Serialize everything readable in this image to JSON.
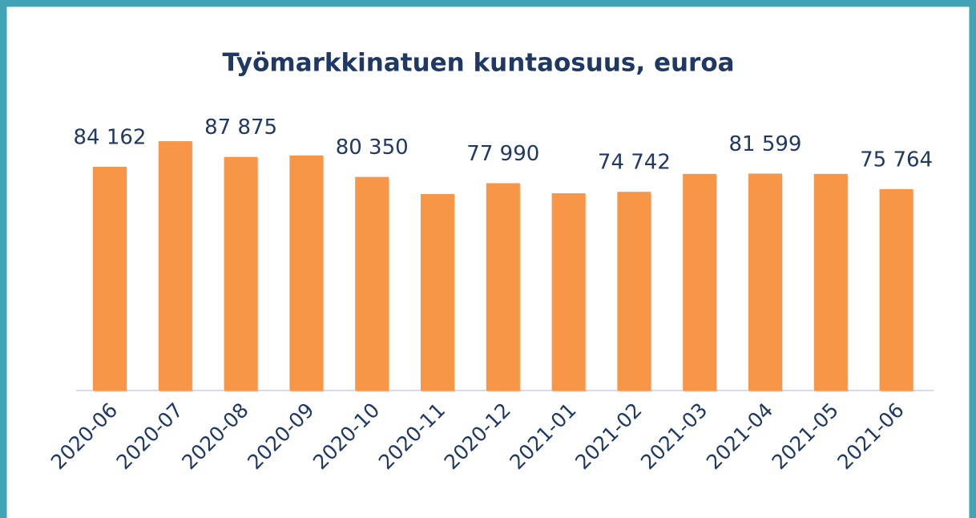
{
  "chart_data": {
    "type": "bar",
    "title": "Työmarkkinatuen kuntaosuus, euroa",
    "categories": [
      "2020-06",
      "2020-07",
      "2020-08",
      "2020-09",
      "2020-10",
      "2020-11",
      "2020-12",
      "2021-01",
      "2021-02",
      "2021-03",
      "2021-04",
      "2021-05",
      "2021-06"
    ],
    "values": [
      84162,
      93800,
      87875,
      88400,
      80350,
      73900,
      77990,
      74200,
      74742,
      81500,
      81599,
      81500,
      75764
    ],
    "value_labels": [
      "84 162",
      null,
      "87 875",
      null,
      "80 350",
      null,
      "77 990",
      null,
      "74 742",
      null,
      "81 599",
      null,
      "75 764"
    ],
    "color": "#f79646",
    "ylim": [
      0,
      100000
    ]
  }
}
